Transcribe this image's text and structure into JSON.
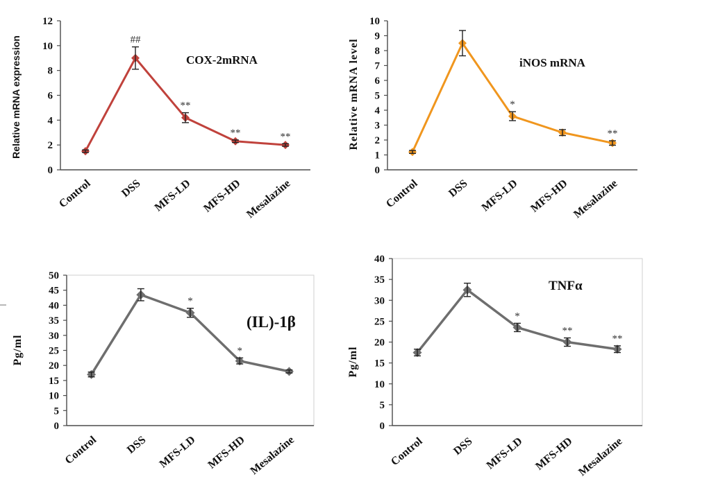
{
  "chart_data": [
    {
      "type": "line",
      "title": "COX-2mRNA",
      "ylabel": "Relative mRNA expression",
      "categories": [
        "Control",
        "DSS",
        "MFS-LD",
        "MFS-HD",
        "Mesalazine"
      ],
      "values": [
        1.5,
        9.0,
        4.2,
        2.3,
        2.0
      ],
      "errors": [
        0.1,
        0.9,
        0.4,
        0.1,
        0.1
      ],
      "annotations": [
        null,
        "##",
        "**",
        "**",
        "**"
      ],
      "ylim": [
        0,
        12
      ],
      "yticks": [
        0,
        2,
        4,
        6,
        8,
        10,
        12
      ],
      "color": "#c0423c",
      "grid": false
    },
    {
      "type": "line",
      "title": "iNOS mRNA",
      "ylabel": "Relative mRNA level",
      "categories": [
        "Control",
        "DSS",
        "MFS-LD",
        "MFS-HD",
        "Mesalazine"
      ],
      "values": [
        1.2,
        8.5,
        3.6,
        2.5,
        1.8
      ],
      "errors": [
        0.1,
        0.85,
        0.3,
        0.2,
        0.15
      ],
      "annotations": [
        null,
        null,
        "*",
        null,
        "**"
      ],
      "ylim": [
        0,
        10
      ],
      "yticks": [
        0,
        1,
        2,
        3,
        4,
        5,
        6,
        7,
        8,
        9,
        10
      ],
      "color": "#f0961e",
      "grid": false
    },
    {
      "type": "line",
      "title": "(IL)-1β",
      "ylabel": "Pg/ml",
      "categories": [
        "Control",
        "DSS",
        "MFS-LD",
        "MFS-HD",
        "Mesalazine"
      ],
      "values": [
        17,
        43.5,
        37.5,
        21.5,
        18
      ],
      "errors": [
        0.8,
        2.0,
        1.5,
        1.0,
        0.5
      ],
      "annotations": [
        null,
        null,
        "*",
        "*",
        null
      ],
      "ylim": [
        0,
        50
      ],
      "yticks": [
        0,
        5,
        10,
        15,
        20,
        25,
        30,
        35,
        40,
        45,
        50
      ],
      "color": "#6e6e6e",
      "grid": false
    },
    {
      "type": "line",
      "title": "TNFα",
      "ylabel": "Pg/ml",
      "categories": [
        "Control",
        "DSS",
        "MFS-LD",
        "MFS-HD",
        "Mesalazine"
      ],
      "values": [
        17.5,
        32.5,
        23.5,
        20,
        18.3
      ],
      "errors": [
        0.8,
        1.6,
        1.0,
        1.0,
        0.8
      ],
      "annotations": [
        null,
        null,
        "*",
        "**",
        "**"
      ],
      "ylim": [
        0,
        40
      ],
      "yticks": [
        0,
        5,
        10,
        15,
        20,
        25,
        30,
        35,
        40
      ],
      "color": "#6e6e6e",
      "grid": false
    }
  ]
}
